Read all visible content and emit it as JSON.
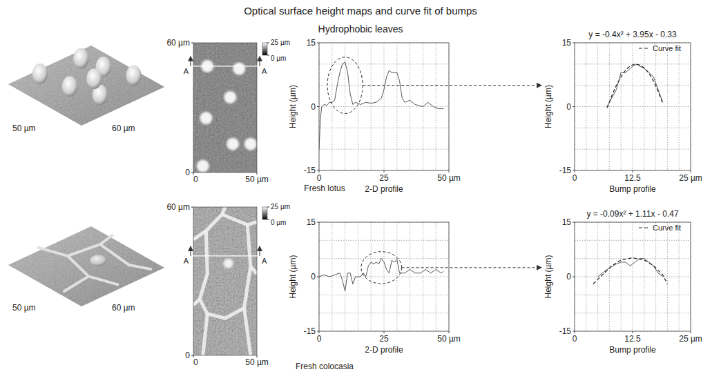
{
  "title": "Optical surface height maps and curve fit of bumps",
  "subtitle": "Hydrophobic leaves",
  "samples": [
    {
      "label": "Fresh lotus",
      "surface_3d": {
        "x_label": "50 µm",
        "y_label": "60 µm"
      },
      "height_map": {
        "xlim": [
          0,
          50
        ],
        "ylim": [
          0,
          60
        ],
        "xticks": [
          0,
          {
            "value": 50,
            "label": "50 µm"
          }
        ],
        "yticks": [
          0,
          {
            "value": 60,
            "label": "60 µm"
          }
        ],
        "colorbar": {
          "range": [
            0,
            25
          ],
          "ticks": [
            {
              "value": 0,
              "label": "0 µm"
            },
            {
              "value": 25,
              "label": "25 µm"
            }
          ]
        },
        "section_label": "A"
      }
    },
    {
      "label": "Fresh colocasia",
      "surface_3d": {
        "x_label": "50 µm",
        "y_label": "60 µm"
      },
      "height_map": {
        "xlim": [
          0,
          50
        ],
        "ylim": [
          0,
          60
        ],
        "xticks": [
          0,
          {
            "value": 50,
            "label": "50 µm"
          }
        ],
        "yticks": [
          0,
          {
            "value": 60,
            "label": "60 µm"
          }
        ],
        "colorbar": {
          "range": [
            0,
            25
          ],
          "ticks": [
            {
              "value": 0,
              "label": "0 µm"
            },
            {
              "value": 25,
              "label": "25 µm"
            }
          ]
        },
        "section_label": "A"
      }
    }
  ],
  "chart_data": [
    {
      "type": "line",
      "x_label": "2-D profile",
      "y_label": "Height (µm)",
      "xlim": [
        0,
        50
      ],
      "ylim": [
        -15,
        15
      ],
      "xticks": [
        0,
        25,
        {
          "value": 50,
          "label": "50 µm"
        }
      ],
      "yticks": [
        -15,
        0,
        15
      ],
      "grid": true,
      "series": [
        {
          "color": "#555555",
          "line_style": "solid",
          "x": [
            0,
            0.5,
            1,
            2,
            3,
            4,
            5,
            6,
            7,
            8,
            9,
            10,
            11,
            12,
            13,
            14,
            16,
            18,
            20,
            22,
            24,
            25,
            26,
            27,
            28,
            30,
            31,
            32,
            33,
            35,
            37,
            40,
            42,
            44,
            46,
            48
          ],
          "values": [
            -10,
            -3,
            0,
            0.5,
            0.3,
            1,
            1,
            1.5,
            5,
            8,
            10,
            10.5,
            8,
            3,
            0.5,
            1,
            0.5,
            1,
            0.8,
            1,
            2,
            4,
            7,
            8.5,
            8,
            8,
            6,
            2,
            1,
            1.5,
            0.5,
            0,
            1,
            0,
            -0.5,
            -0.5
          ]
        }
      ]
    },
    {
      "type": "line",
      "x_label": "Bump profile",
      "y_label": "Height (µm)",
      "xlim": [
        0,
        25
      ],
      "ylim": [
        -15,
        15
      ],
      "xticks": [
        0,
        12.5,
        {
          "value": 25,
          "label": "25 µm"
        }
      ],
      "yticks": [
        -15,
        0,
        15
      ],
      "grid": true,
      "legend": "upper right",
      "annotation": "y = -0.4x² + 3.95x - 0.33",
      "series": [
        {
          "color": "#555555",
          "line_style": "solid",
          "x": [
            7,
            8,
            9,
            10,
            11,
            12,
            12.5,
            13.5,
            14,
            15,
            16,
            17,
            18,
            19
          ],
          "values": [
            0,
            2,
            4,
            8,
            8,
            9,
            9.5,
            10,
            9.5,
            9,
            8,
            7,
            4,
            1
          ]
        },
        {
          "name": "Curve fit",
          "color": "#222222",
          "line_style": "dashed",
          "x": [
            7,
            8,
            9,
            10,
            11,
            12,
            13,
            14,
            15,
            16,
            17,
            18,
            19
          ],
          "values": [
            -0.3,
            2.5,
            5,
            7,
            8.6,
            9.6,
            10,
            9.8,
            9.1,
            7.9,
            6,
            3.6,
            0.8
          ]
        }
      ]
    },
    {
      "type": "line",
      "x_label": "2-D profile",
      "y_label": "Height (µm)",
      "xlim": [
        0,
        50
      ],
      "ylim": [
        -15,
        15
      ],
      "xticks": [
        0,
        25,
        {
          "value": 50,
          "label": "50 µm"
        }
      ],
      "yticks": [
        -15,
        0,
        15
      ],
      "grid": true,
      "series": [
        {
          "color": "#555555",
          "line_style": "solid",
          "x": [
            0,
            2,
            4,
            6,
            8,
            9,
            10,
            11,
            12,
            13,
            14,
            16,
            17,
            18,
            19,
            20,
            21,
            22,
            23,
            24,
            25,
            26,
            27,
            28,
            29,
            30,
            31,
            33,
            35,
            37,
            39,
            41,
            43,
            45,
            47,
            48
          ],
          "values": [
            0,
            0.5,
            0,
            0.5,
            1,
            -1,
            -4,
            1,
            1,
            -2,
            0,
            0,
            1,
            0,
            3,
            4,
            3.5,
            4,
            3.5,
            5,
            4,
            2,
            1,
            4.5,
            4,
            4.8,
            1,
            1,
            2,
            1,
            1,
            2,
            1,
            2,
            1,
            1.5
          ]
        }
      ]
    },
    {
      "type": "line",
      "x_label": "Bump profile",
      "y_label": "Height (µm)",
      "xlim": [
        0,
        25
      ],
      "ylim": [
        -15,
        15
      ],
      "xticks": [
        0,
        12.5,
        {
          "value": 25,
          "label": "25 µm"
        }
      ],
      "yticks": [
        -15,
        0,
        15
      ],
      "grid": true,
      "legend": "upper right",
      "annotation": "y = -0.09x² + 1.11x - 0.47",
      "series": [
        {
          "color": "#555555",
          "line_style": "solid",
          "x": [
            5,
            7,
            9,
            10,
            11,
            12,
            13,
            14,
            15,
            16,
            17,
            18,
            19
          ],
          "values": [
            0,
            2,
            3.5,
            4,
            4,
            3,
            4,
            5,
            5,
            4,
            3,
            1,
            0
          ]
        },
        {
          "name": "Curve fit",
          "color": "#222222",
          "line_style": "dashed",
          "x": [
            4,
            6,
            8,
            10,
            12.5,
            15,
            17,
            19,
            20
          ],
          "values": [
            -2,
            0.5,
            3,
            4.6,
            5.2,
            4.6,
            3,
            0.5,
            -2
          ]
        }
      ]
    }
  ]
}
